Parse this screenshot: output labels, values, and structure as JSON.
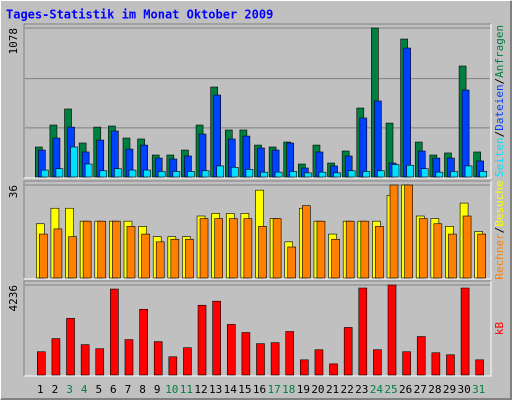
{
  "chart_data": [
    {
      "type": "bar",
      "title": "Tages-Statistik im Monat Oktober 2009",
      "ylim": [
        0,
        1078
      ],
      "yticks": [
        1078
      ],
      "separator": "/",
      "series": [
        {
          "name": "Anfragen",
          "color": "#008040",
          "values": [
            217,
            376,
            492,
            246,
            361,
            369,
            282,
            275,
            159,
            159,
            195,
            376,
            651,
            340,
            340,
            231,
            217,
            253,
            94,
            231,
            101,
            188,
            499,
            1078,
            390,
            998,
            253,
            159,
            174,
            803,
            181
          ]
        },
        {
          "name": "Dateien",
          "color": "#0040ff",
          "values": [
            195,
            282,
            361,
            181,
            267,
            333,
            202,
            231,
            137,
            130,
            152,
            311,
            593,
            275,
            296,
            210,
            195,
            246,
            65,
            181,
            80,
            152,
            427,
            550,
            101,
            933,
            188,
            137,
            137,
            629,
            116
          ]
        },
        {
          "name": "Seiten",
          "color": "#00e0ff",
          "values": [
            50,
            60,
            217,
            94,
            45,
            60,
            50,
            50,
            40,
            40,
            40,
            45,
            80,
            70,
            55,
            35,
            35,
            40,
            30,
            35,
            30,
            45,
            40,
            45,
            90,
            85,
            60,
            35,
            40,
            80,
            40
          ]
        }
      ]
    },
    {
      "type": "bar",
      "ylim": [
        0,
        36
      ],
      "yticks": [
        36
      ],
      "separator": "/",
      "series": [
        {
          "name": "Besuche",
          "color": "#ffff00",
          "values": [
            21,
            27,
            27,
            22,
            22,
            22,
            22,
            20,
            16,
            16,
            16,
            24,
            25,
            25,
            25,
            34,
            23,
            14,
            27,
            22,
            17,
            22,
            22,
            22,
            32,
            36,
            24,
            23,
            20,
            29,
            18
          ]
        },
        {
          "name": "Rechner",
          "color": "#ff8000",
          "values": [
            17,
            19,
            16,
            22,
            22,
            22,
            20,
            17,
            14,
            15,
            15,
            23,
            23,
            23,
            23,
            20,
            23,
            12,
            28,
            22,
            15,
            22,
            22,
            20,
            36,
            36,
            23,
            21,
            17,
            24,
            17
          ]
        }
      ]
    },
    {
      "type": "bar",
      "ylim": [
        0,
        4236
      ],
      "yticks": [
        4236
      ],
      "categories": [
        "1",
        "2",
        "3",
        "4",
        "5",
        "6",
        "7",
        "8",
        "9",
        "10",
        "11",
        "12",
        "13",
        "14",
        "15",
        "16",
        "17",
        "18",
        "19",
        "20",
        "21",
        "22",
        "23",
        "24",
        "25",
        "26",
        "27",
        "28",
        "29",
        "30",
        "31"
      ],
      "category_colors": [
        "#000000",
        "#000000",
        "#008040",
        "#008040",
        "#000000",
        "#000000",
        "#000000",
        "#000000",
        "#000000",
        "#008040",
        "#008040",
        "#000000",
        "#000000",
        "#000000",
        "#000000",
        "#000000",
        "#008040",
        "#008040",
        "#000000",
        "#000000",
        "#000000",
        "#000000",
        "#000000",
        "#008040",
        "#008040",
        "#000000",
        "#000000",
        "#000000",
        "#000000",
        "#000000",
        "#008040"
      ],
      "series": [
        {
          "name": "kB",
          "color": "#ff0000",
          "values": [
            1095,
            1713,
            2665,
            1428,
            1237,
            4046,
            1666,
            3094,
            1571,
            857,
            1285,
            3284,
            3474,
            2380,
            1999,
            1475,
            1523,
            2047,
            714,
            1190,
            524,
            2237,
            4094,
            1190,
            4236,
            1095,
            1809,
            1047,
            952,
            4094,
            714
          ]
        }
      ]
    }
  ]
}
